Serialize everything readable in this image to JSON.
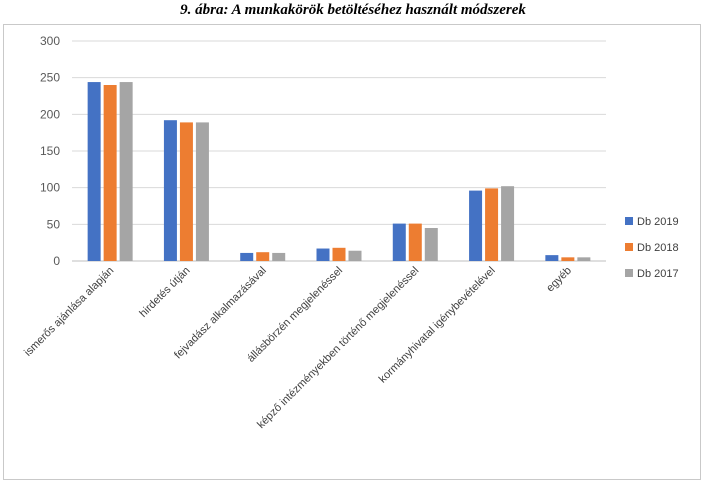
{
  "figure": {
    "title": "9. ábra: A munkakörök betöltéséhez használt módszerek"
  },
  "chart_data": {
    "type": "bar",
    "title": "9. ábra: A munkakörök betöltéséhez használt módszerek",
    "categories": [
      "ismerős ajánlása alapján",
      "hirdetés útján",
      "fejvadász alkalmazásával",
      "állásbörzén megjelenéssel",
      "képző intézményekben történő megjelenéssel",
      "kormányhivatal igénybevételével",
      "egyéb"
    ],
    "series": [
      {
        "name": "Db 2019",
        "color": "#4472c4",
        "values": [
          244,
          192,
          11,
          17,
          51,
          96,
          8
        ]
      },
      {
        "name": "Db 2018",
        "color": "#ed7d31",
        "values": [
          240,
          189,
          12,
          18,
          51,
          99,
          5
        ]
      },
      {
        "name": "Db 2017",
        "color": "#a5a5a5",
        "values": [
          244,
          189,
          11,
          14,
          45,
          102,
          5
        ]
      }
    ],
    "ylim": [
      0,
      300
    ],
    "yticks": [
      0,
      50,
      100,
      150,
      200,
      250,
      300
    ],
    "grid": true,
    "legend": "right"
  }
}
